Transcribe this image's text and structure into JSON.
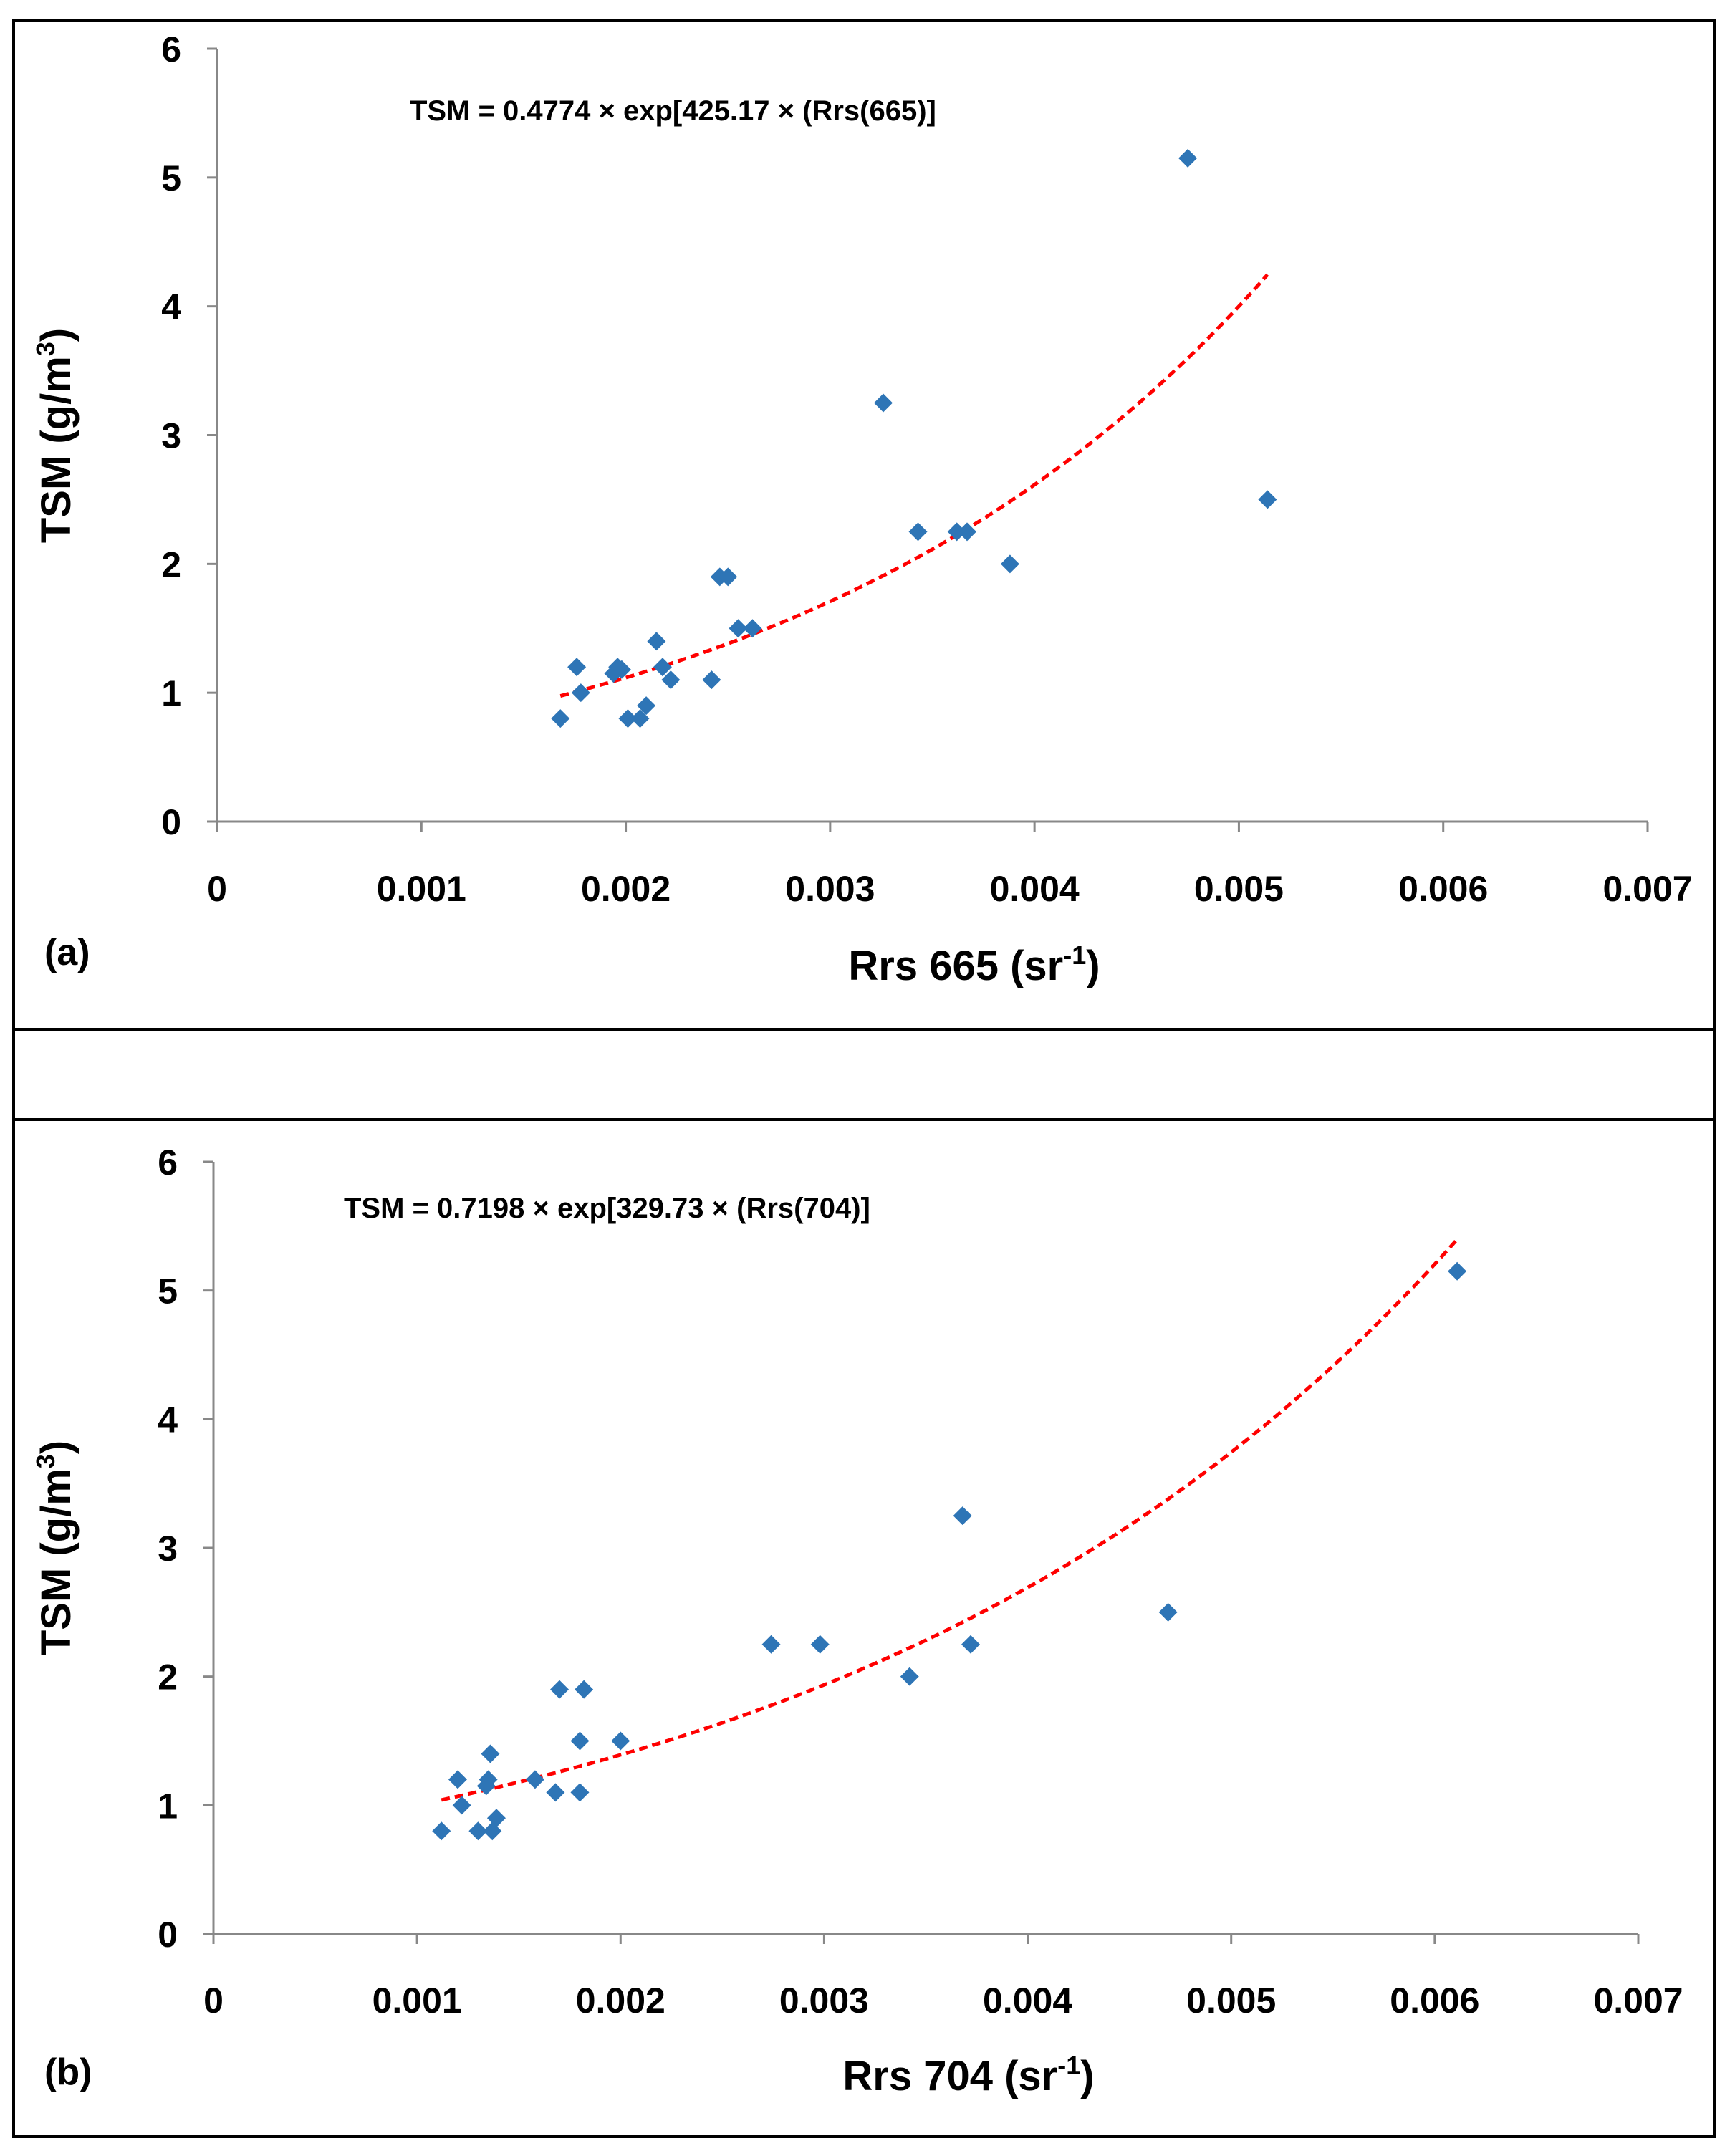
{
  "figure_frame": {
    "stroke": "#000000"
  },
  "chart_data": [
    {
      "type": "scatter",
      "panel_label": "(a)",
      "equation": "TSM = 0.4774 × exp[425.17 × (Rrs(665)]",
      "xlabel_main": "Rrs 665 (sr",
      "xlabel_sup": "-1",
      "xlabel_close": ")",
      "ylabel_main": "TSM (g/m",
      "ylabel_sup": "3",
      "ylabel_close": ")",
      "xlim": [
        0,
        0.007
      ],
      "ylim": [
        0,
        6
      ],
      "xticks": [
        0,
        0.001,
        0.002,
        0.003,
        0.004,
        0.005,
        0.006,
        0.007
      ],
      "xtick_labels": [
        "0",
        "0.001",
        "0.002",
        "0.003",
        "0.004",
        "0.005",
        "0.006",
        "0.007"
      ],
      "yticks": [
        0,
        1,
        2,
        3,
        4,
        5,
        6
      ],
      "ytick_labels": [
        "0",
        "1",
        "2",
        "3",
        "4",
        "5",
        "6"
      ],
      "grid": false,
      "marker_color": "#2E75B6",
      "fit_color": "#FF0000",
      "fit": {
        "a": 0.4774,
        "b": 425.17,
        "x_range": [
          0.00168,
          0.00514
        ]
      },
      "points": [
        {
          "x": 0.00168,
          "y": 0.8
        },
        {
          "x": 0.00176,
          "y": 1.2
        },
        {
          "x": 0.00178,
          "y": 1.0
        },
        {
          "x": 0.00194,
          "y": 1.15
        },
        {
          "x": 0.00196,
          "y": 1.2
        },
        {
          "x": 0.00198,
          "y": 1.18
        },
        {
          "x": 0.00201,
          "y": 0.8
        },
        {
          "x": 0.00207,
          "y": 0.8
        },
        {
          "x": 0.0021,
          "y": 0.9
        },
        {
          "x": 0.00215,
          "y": 1.4
        },
        {
          "x": 0.00218,
          "y": 1.2
        },
        {
          "x": 0.00222,
          "y": 1.1
        },
        {
          "x": 0.00242,
          "y": 1.1
        },
        {
          "x": 0.00246,
          "y": 1.9
        },
        {
          "x": 0.0025,
          "y": 1.9
        },
        {
          "x": 0.00255,
          "y": 1.5
        },
        {
          "x": 0.00262,
          "y": 1.5
        },
        {
          "x": 0.00326,
          "y": 3.25
        },
        {
          "x": 0.00343,
          "y": 2.25
        },
        {
          "x": 0.00362,
          "y": 2.25
        },
        {
          "x": 0.00367,
          "y": 2.25
        },
        {
          "x": 0.00388,
          "y": 2.0
        },
        {
          "x": 0.00475,
          "y": 5.15
        },
        {
          "x": 0.00514,
          "y": 2.5
        }
      ]
    },
    {
      "type": "scatter",
      "panel_label": "(b)",
      "equation": "TSM = 0.7198 × exp[329.73 × (Rrs(704)]",
      "xlabel_main": "Rrs 704 (sr",
      "xlabel_sup": "-1",
      "xlabel_close": ")",
      "ylabel_main": "TSM (g/m",
      "ylabel_sup": "3",
      "ylabel_close": ")",
      "xlim": [
        0,
        0.007
      ],
      "ylim": [
        0,
        6
      ],
      "xticks": [
        0,
        0.001,
        0.002,
        0.003,
        0.004,
        0.005,
        0.006,
        0.007
      ],
      "xtick_labels": [
        "0",
        "0.001",
        "0.002",
        "0.003",
        "0.004",
        "0.005",
        "0.006",
        "0.007"
      ],
      "yticks": [
        0,
        1,
        2,
        3,
        4,
        5,
        6
      ],
      "ytick_labels": [
        "0",
        "1",
        "2",
        "3",
        "4",
        "5",
        "6"
      ],
      "grid": false,
      "marker_color": "#2E75B6",
      "fit_color": "#FF0000",
      "fit": {
        "a": 0.7198,
        "b": 329.73,
        "x_range": [
          0.00112,
          0.00611
        ]
      },
      "points": [
        {
          "x": 0.00112,
          "y": 0.8
        },
        {
          "x": 0.0012,
          "y": 1.2
        },
        {
          "x": 0.00122,
          "y": 1.0
        },
        {
          "x": 0.0013,
          "y": 0.8
        },
        {
          "x": 0.00134,
          "y": 1.15
        },
        {
          "x": 0.00135,
          "y": 1.2
        },
        {
          "x": 0.00136,
          "y": 1.4
        },
        {
          "x": 0.00137,
          "y": 0.8
        },
        {
          "x": 0.00139,
          "y": 0.9
        },
        {
          "x": 0.00158,
          "y": 1.2
        },
        {
          "x": 0.00168,
          "y": 1.1
        },
        {
          "x": 0.0017,
          "y": 1.9
        },
        {
          "x": 0.0018,
          "y": 1.5
        },
        {
          "x": 0.0018,
          "y": 1.1
        },
        {
          "x": 0.00182,
          "y": 1.9
        },
        {
          "x": 0.002,
          "y": 1.5
        },
        {
          "x": 0.00274,
          "y": 2.25
        },
        {
          "x": 0.00298,
          "y": 2.25
        },
        {
          "x": 0.00342,
          "y": 2.0
        },
        {
          "x": 0.00368,
          "y": 3.25
        },
        {
          "x": 0.00372,
          "y": 2.25
        },
        {
          "x": 0.00469,
          "y": 2.5
        },
        {
          "x": 0.00611,
          "y": 5.15
        }
      ]
    }
  ]
}
